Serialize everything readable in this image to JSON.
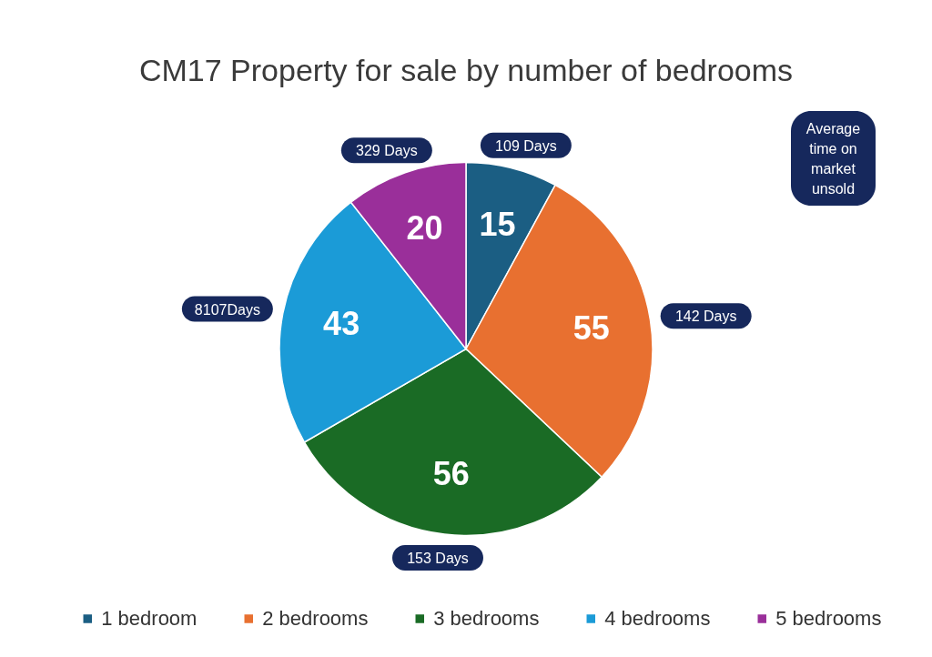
{
  "chart_data": {
    "type": "pie",
    "title": "CM17 Property for sale by number of bedrooms",
    "categories": [
      "1 bedroom",
      "2 bedrooms",
      "3 bedrooms",
      "4 bedrooms",
      "5 bedrooms"
    ],
    "values": [
      15,
      55,
      56,
      43,
      20
    ],
    "colors": [
      "#1b5e83",
      "#e87030",
      "#1a6b25",
      "#1b9bd7",
      "#9a2f9a"
    ],
    "data_labels": true,
    "annotations": [
      "109 Days",
      "142 Days",
      "153 Days",
      "8107Days",
      "329 Days",
      "Average time on market unsold"
    ],
    "legend": "bottom"
  }
}
